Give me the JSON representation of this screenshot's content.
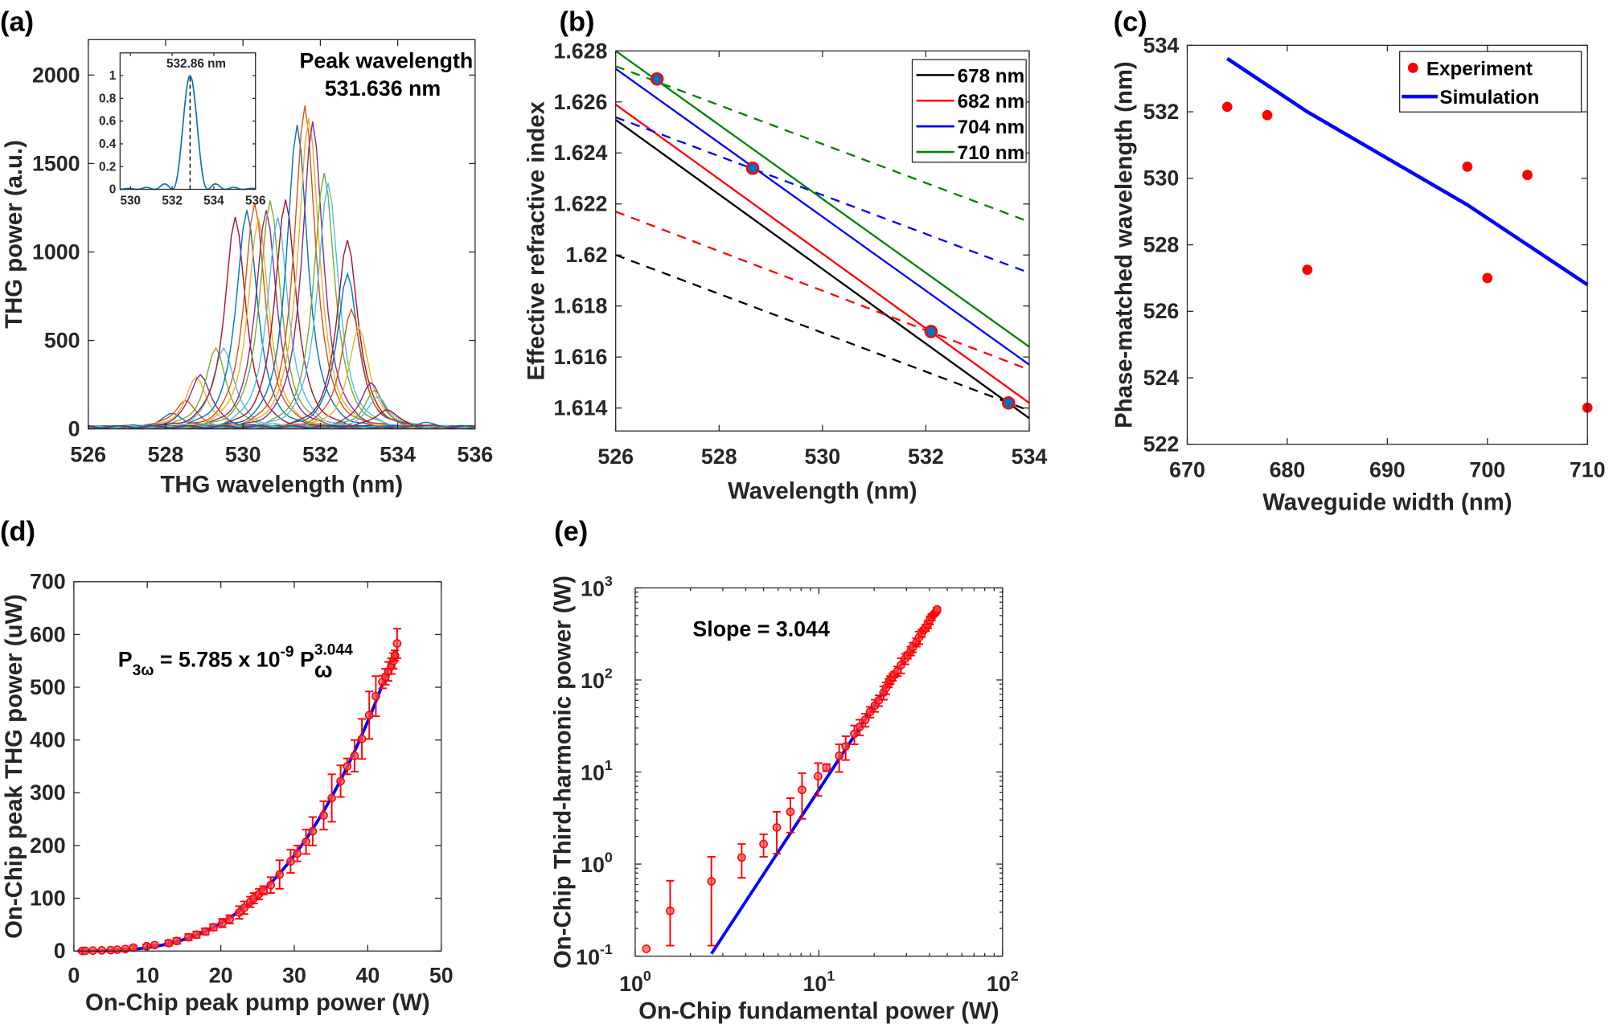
{
  "colors": {
    "matlab_cycle": [
      "#0072BD",
      "#D95319",
      "#EDB120",
      "#7E2F8E",
      "#77AC30",
      "#4DBEEE",
      "#A2142F"
    ],
    "black": "#000000",
    "red": "#FF0000",
    "blue": "#0000FF",
    "green": "#008000",
    "marker_fill": "#0072BD",
    "axis": "#262626"
  },
  "chart_data": [
    {
      "id": "a",
      "panel_label": "(a)",
      "type": "line",
      "xlabel": "THG wavelength (nm)",
      "ylabel": "THG power (a.u.)",
      "xlim": [
        526,
        536
      ],
      "ylim": [
        0,
        2200
      ],
      "xticks": [
        526,
        528,
        530,
        532,
        534,
        536
      ],
      "xticklabels": [
        "526",
        "528",
        "530",
        "532",
        "534",
        "536"
      ],
      "yticks": [
        0,
        500,
        1000,
        1500,
        2000
      ],
      "yticklabels": [
        "0",
        "500",
        "1000",
        "1500",
        "2000"
      ],
      "grid": false,
      "annotation": [
        "Peak wavelength",
        "531.636 nm"
      ],
      "spectra_peaks": [
        {
          "center": 528.2,
          "amplitude": 75
        },
        {
          "center": 528.5,
          "amplitude": 150
        },
        {
          "center": 528.8,
          "amplitude": 280
        },
        {
          "center": 528.9,
          "amplitude": 300
        },
        {
          "center": 529.3,
          "amplitude": 440
        },
        {
          "center": 529.5,
          "amplitude": 450
        },
        {
          "center": 529.8,
          "amplitude": 1180
        },
        {
          "center": 530.1,
          "amplitude": 1230
        },
        {
          "center": 530.3,
          "amplitude": 1260
        },
        {
          "center": 530.4,
          "amplitude": 1170
        },
        {
          "center": 530.6,
          "amplitude": 1230
        },
        {
          "center": 530.7,
          "amplitude": 1280
        },
        {
          "center": 530.9,
          "amplitude": 1180
        },
        {
          "center": 531.1,
          "amplitude": 1290
        },
        {
          "center": 531.4,
          "amplitude": 1700
        },
        {
          "center": 531.6,
          "amplitude": 1820
        },
        {
          "center": 531.7,
          "amplitude": 1750
        },
        {
          "center": 531.8,
          "amplitude": 1720
        },
        {
          "center": 532.1,
          "amplitude": 1440
        },
        {
          "center": 532.2,
          "amplitude": 1380
        },
        {
          "center": 532.7,
          "amplitude": 1060
        },
        {
          "center": 532.7,
          "amplitude": 870
        },
        {
          "center": 532.8,
          "amplitude": 660
        },
        {
          "center": 533.0,
          "amplitude": 560
        },
        {
          "center": 533.3,
          "amplitude": 250
        },
        {
          "center": 533.4,
          "amplitude": 200
        },
        {
          "center": 533.5,
          "amplitude": 170
        },
        {
          "center": 533.7,
          "amplitude": 100
        },
        {
          "center": 534.7,
          "amplitude": 20
        }
      ],
      "inset": {
        "type": "line",
        "xlim": [
          529.5,
          536
        ],
        "ylim": [
          0,
          1.2
        ],
        "xticks": [
          530,
          532,
          534,
          536
        ],
        "xticklabels": [
          "530",
          "532",
          "534",
          "536"
        ],
        "yticks": [
          0,
          0.2,
          0.4,
          0.6,
          0.8,
          1
        ],
        "yticklabels": [
          "0",
          "0.2",
          "0.4",
          "0.6",
          "0.8",
          "1"
        ],
        "peak_center": 532.86,
        "first_null_offset": 0.85,
        "peak_label": "532.86 nm",
        "color": "#0072BD"
      }
    },
    {
      "id": "b",
      "panel_label": "(b)",
      "type": "line",
      "xlabel": "Wavelength (nm)",
      "ylabel": "Effective refractive index",
      "xlim": [
        526,
        534
      ],
      "ylim": [
        1.6131,
        1.628
      ],
      "xticks": [
        526,
        528,
        530,
        532,
        534
      ],
      "xticklabels": [
        "526",
        "528",
        "530",
        "532",
        "534"
      ],
      "yticks": [
        1.614,
        1.616,
        1.618,
        1.62,
        1.622,
        1.624,
        1.626,
        1.628
      ],
      "yticklabels": [
        "1.614",
        "1.616",
        "1.618",
        "1.62",
        "1.622",
        "1.624",
        "1.626",
        "1.628"
      ],
      "legend_position": "top-right",
      "series": [
        {
          "name": "678 nm",
          "color": "#000000",
          "solid": {
            "x": [
              526,
              534
            ],
            "y": [
              1.6253,
              1.6136
            ]
          },
          "dashed": {
            "x": [
              526,
              534
            ],
            "y": [
              1.62,
              1.6139
            ]
          }
        },
        {
          "name": "682 nm",
          "color": "#FF0000",
          "solid": {
            "x": [
              526,
              534
            ],
            "y": [
              1.6259,
              1.6142
            ]
          },
          "dashed": {
            "x": [
              526,
              534
            ],
            "y": [
              1.6217,
              1.6155
            ]
          }
        },
        {
          "name": "704 nm",
          "color": "#0000FF",
          "solid": {
            "x": [
              526,
              534
            ],
            "y": [
              1.6273,
              1.6157
            ]
          },
          "dashed": {
            "x": [
              526,
              534
            ],
            "y": [
              1.6254,
              1.6193
            ]
          }
        },
        {
          "name": "710 nm",
          "color": "#008000",
          "solid": {
            "x": [
              526,
              534
            ],
            "y": [
              1.628,
              1.6164
            ]
          },
          "dashed": {
            "x": [
              526,
              534
            ],
            "y": [
              1.6274,
              1.6213
            ]
          }
        }
      ],
      "crossing_points": {
        "x": [
          526.8,
          528.65,
          532.1,
          533.6
        ],
        "y": [
          1.6269,
          1.6234,
          1.617,
          1.6142
        ]
      }
    },
    {
      "id": "c",
      "panel_label": "(c)",
      "type": "scatter",
      "xlabel": "Waveguide width (nm)",
      "ylabel": "Phase-matched wavelength (nm)",
      "xlim": [
        670,
        710
      ],
      "ylim": [
        522,
        534
      ],
      "xticks": [
        670,
        680,
        690,
        700,
        710
      ],
      "xticklabels": [
        "670",
        "680",
        "690",
        "700",
        "710"
      ],
      "yticks": [
        522,
        524,
        526,
        528,
        530,
        532,
        534
      ],
      "yticklabels": [
        "522",
        "524",
        "526",
        "528",
        "530",
        "532",
        "534"
      ],
      "legend_position": "top-right",
      "series": [
        {
          "name": "Experiment",
          "kind": "scatter",
          "color": "#FF0000",
          "x": [
            674,
            678,
            682,
            698,
            700,
            704,
            710
          ],
          "y": [
            532.15,
            531.9,
            527.25,
            530.35,
            527.0,
            530.1,
            523.1
          ]
        },
        {
          "name": "Simulation",
          "kind": "line",
          "color": "#0000FF",
          "x": [
            674,
            678,
            682,
            690,
            698,
            704,
            710
          ],
          "y": [
            533.6,
            532.8,
            532.0,
            530.6,
            529.2,
            528.0,
            526.8
          ]
        }
      ]
    },
    {
      "id": "d",
      "panel_label": "(d)",
      "type": "scatter",
      "xlabel": "On-Chip peak pump power (W)",
      "ylabel": "On-Chip peak THG power (uW)",
      "xlim": [
        0,
        50
      ],
      "ylim": [
        0,
        700
      ],
      "xticks": [
        0,
        10,
        20,
        30,
        40,
        50
      ],
      "xticklabels": [
        "0",
        "10",
        "20",
        "30",
        "40",
        "50"
      ],
      "yticks": [
        0,
        100,
        200,
        300,
        400,
        500,
        600,
        700
      ],
      "yticklabels": [
        "0",
        "100",
        "200",
        "300",
        "400",
        "500",
        "600",
        "700"
      ],
      "annotation": {
        "p": "P",
        "sub": "3ω",
        "mid": " = 5.785 x 10",
        "sup": "-9",
        "p2": " P",
        "sup2": "3.044",
        "sub2": "ω"
      },
      "fit": {
        "coefficient": 5.785e-09,
        "exponent": 3.044,
        "x_range": [
          0.5,
          43.7
        ],
        "color": "#0000FF"
      },
      "uses_measurements": true
    },
    {
      "id": "e",
      "panel_label": "(e)",
      "type": "scatter",
      "xlabel": "On-Chip fundamental power (W)",
      "ylabel": "On-Chip Third-harmonic power (W)",
      "xscale": "log",
      "yscale": "log",
      "xlim": [
        1,
        100
      ],
      "ylim": [
        0.1,
        1000
      ],
      "xticks": [
        1,
        10,
        100
      ],
      "xticklabels": [
        {
          "base": "10",
          "exp": "0"
        },
        {
          "base": "10",
          "exp": "1"
        },
        {
          "base": "10",
          "exp": "2"
        }
      ],
      "yticks": [
        0.1,
        1,
        10,
        100,
        1000
      ],
      "yticklabels": [
        {
          "base": "10",
          "exp": "-1"
        },
        {
          "base": "10",
          "exp": "0"
        },
        {
          "base": "10",
          "exp": "1"
        },
        {
          "base": "10",
          "exp": "2"
        },
        {
          "base": "10",
          "exp": "3"
        }
      ],
      "annotation": "Slope = 3.044",
      "fit": {
        "coefficient": 5.785e-09,
        "exponent": 3.044,
        "x_range": [
          2.6,
          43.7
        ],
        "color": "#0000FF"
      },
      "uses_measurements": true
    }
  ],
  "measurements": {
    "x": [
      1.15,
      1.55,
      2.6,
      3.8,
      5.0,
      5.9,
      7.0,
      8.1,
      9.9,
      11.0,
      12.9,
      14.0,
      15.6,
      16.7,
      17.9,
      19.0,
      20.2,
      21.2,
      22.5,
      23.2,
      24.0,
      24.5,
      25.2,
      25.8,
      26.8,
      28.0,
      29.5,
      30.4,
      31.6,
      32.5,
      34.0,
      35.1,
      36.3,
      37.2,
      38.2,
      39.2,
      40.2,
      41.1,
      42.0,
      42.4,
      42.8,
      43.2,
      43.5,
      43.7,
      44.0
    ],
    "y": [
      0.12,
      0.31,
      0.65,
      1.18,
      1.65,
      2.5,
      3.7,
      6.4,
      9,
      11.2,
      15,
      19,
      26,
      31,
      37,
      45,
      53,
      60,
      73,
      82,
      93,
      100,
      108,
      115,
      125,
      145,
      170,
      185,
      207,
      227,
      257,
      290,
      322,
      350,
      370,
      402,
      447,
      483,
      510,
      520,
      530,
      540,
      550,
      560,
      583
    ],
    "err": [
      0,
      0.35,
      0.55,
      0.47,
      0.45,
      1.2,
      1.5,
      3.3,
      3.5,
      1.0,
      5,
      5.5,
      6,
      6,
      6,
      6,
      8,
      8,
      12,
      12,
      10,
      10,
      10,
      8,
      15,
      27,
      22,
      15,
      23,
      27,
      27,
      45,
      30,
      15,
      30,
      38,
      45,
      38,
      12,
      15,
      18,
      15,
      15,
      10,
      28
    ],
    "color": "#FF0000"
  }
}
